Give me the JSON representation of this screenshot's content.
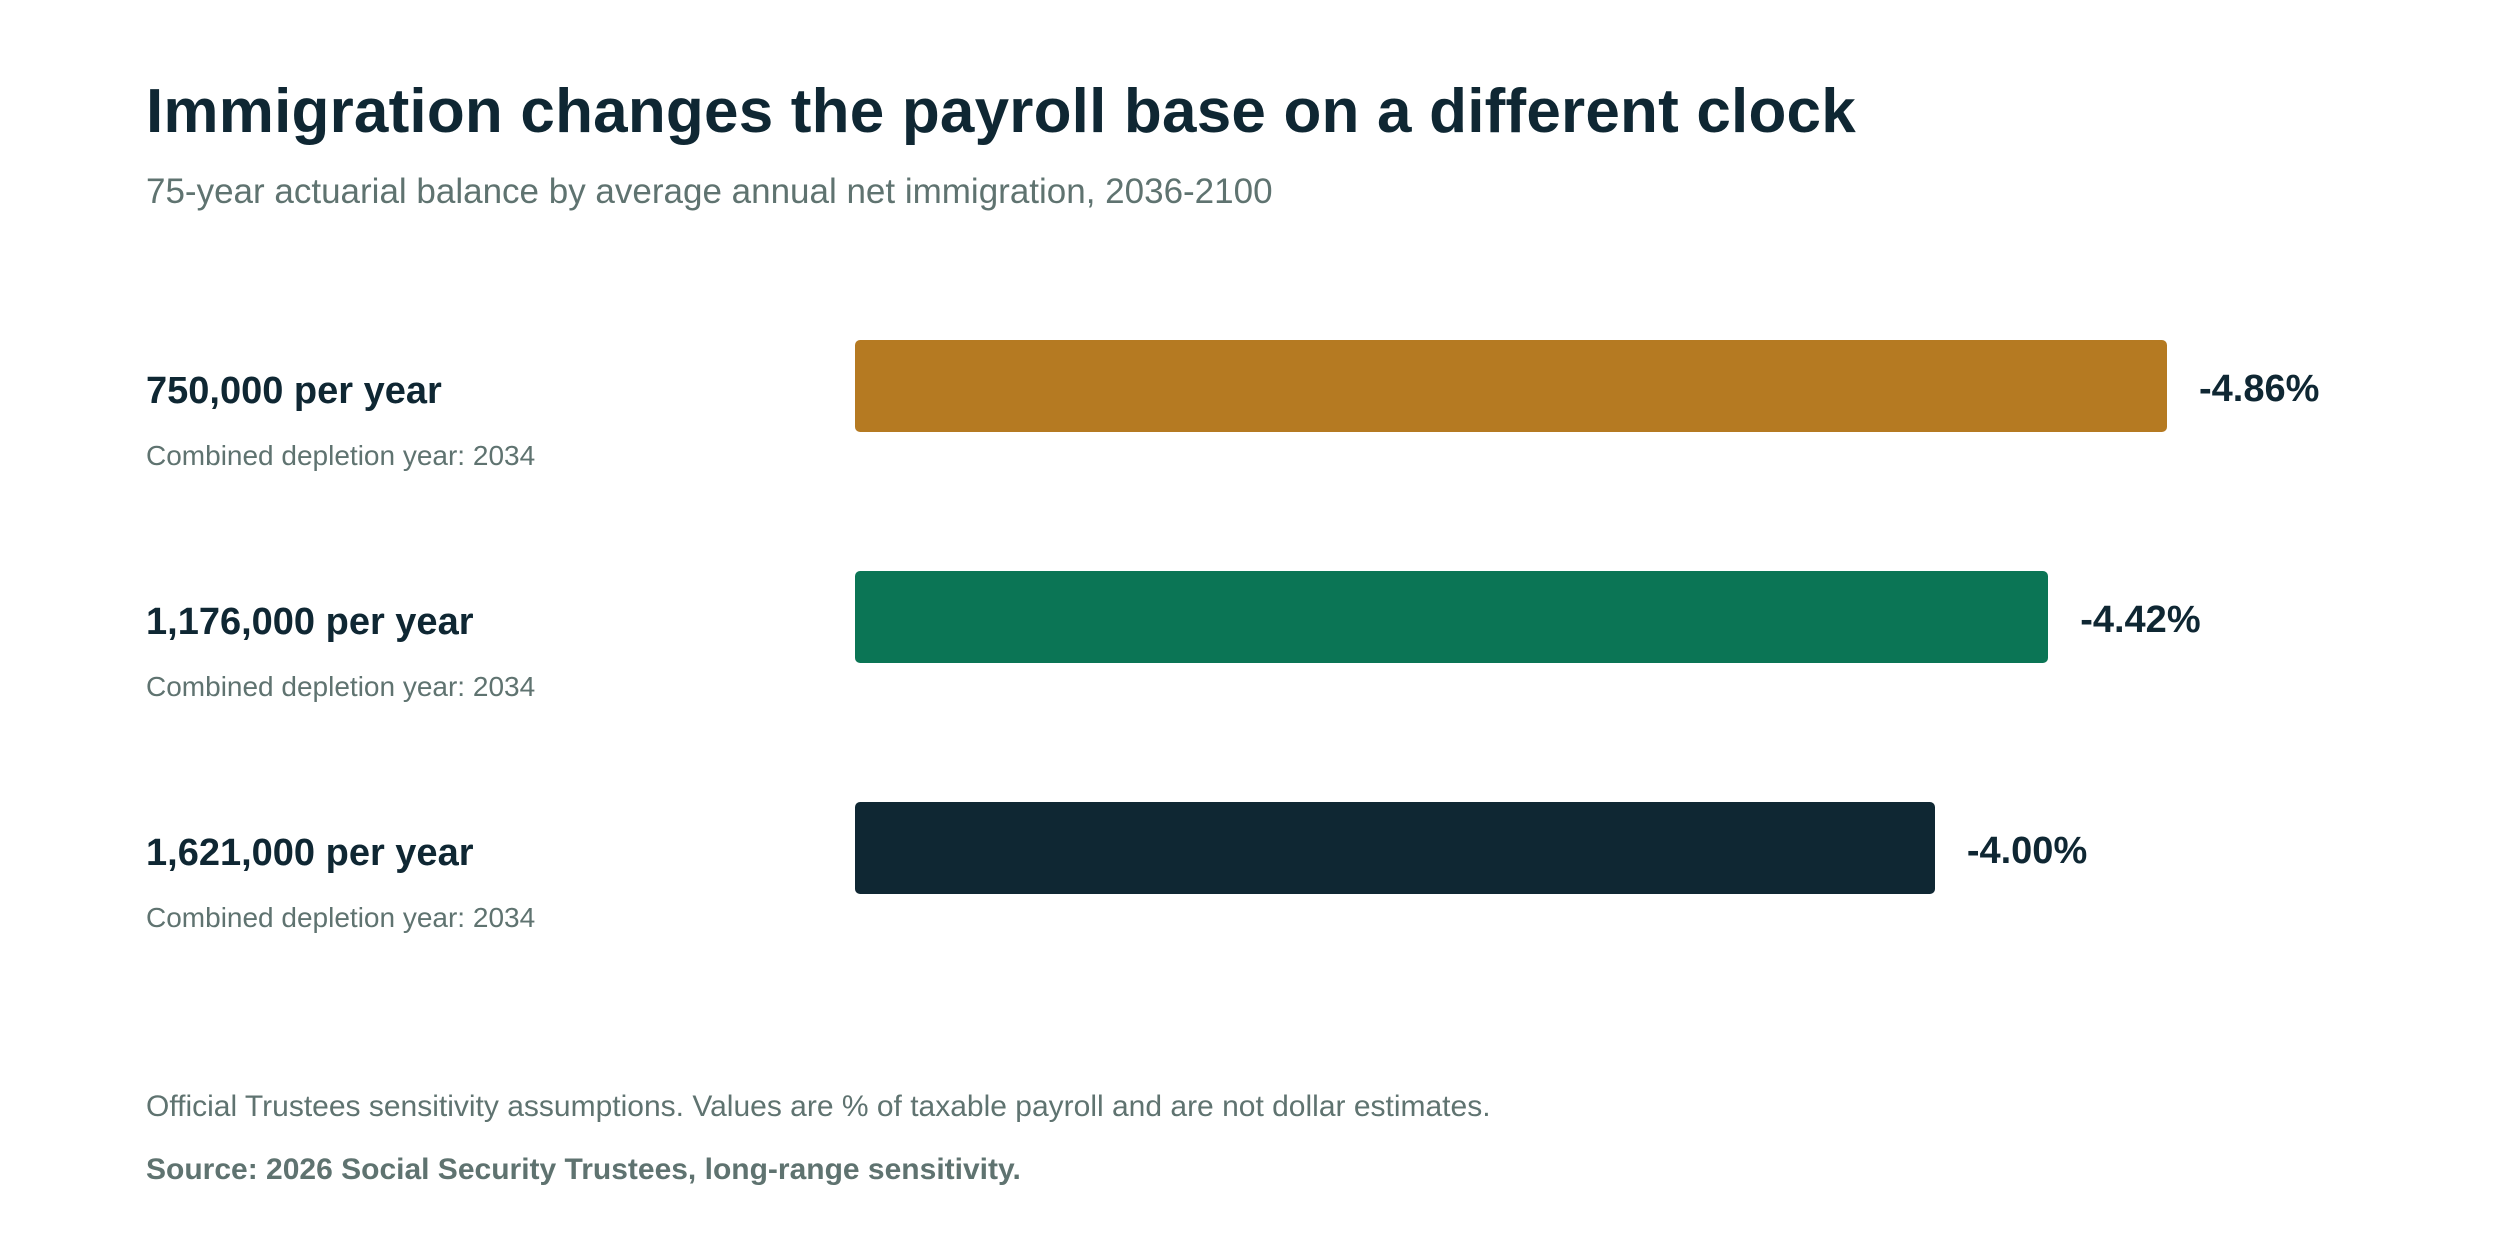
{
  "chart_data": {
    "type": "bar",
    "orientation": "horizontal",
    "title": "Immigration changes the payroll base on a different clock",
    "subtitle": "75-year actuarial balance by average annual net immigration, 2036-2100",
    "categories": [
      "750,000 per year",
      "1,176,000 per year",
      "1,621,000 per year"
    ],
    "notes": [
      "Combined depletion year: 2034",
      "Combined depletion year: 2034",
      "Combined depletion year: 2034"
    ],
    "values": [
      -4.86,
      -4.42,
      -4.0
    ],
    "value_labels": [
      "-4.86%",
      "-4.42%",
      "-4.00%"
    ],
    "colors": [
      "#b57a22",
      "#0b7555",
      "#0f2733"
    ],
    "xlim": [
      0,
      -4.86
    ],
    "grid": false,
    "legend": "none"
  },
  "footnote": "Official Trustees sensitivity assumptions. Values are % of taxable payroll and are not dollar estimates.",
  "source": "Source: 2026 Social Security Trustees, long-range sensitivity."
}
